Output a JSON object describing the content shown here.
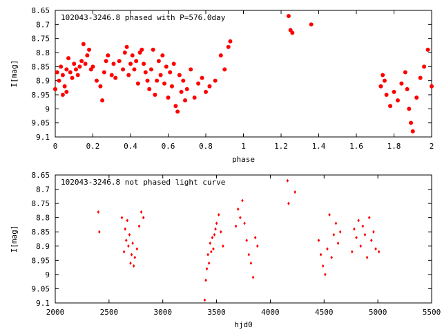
{
  "chart_data": [
    {
      "type": "scatter",
      "title": "102043-3246.8 phased with P=576.0day",
      "xlabel": "phase",
      "ylabel": "I[mag]",
      "xlim": [
        0,
        2
      ],
      "ylim": [
        9.1,
        8.65
      ],
      "y_inverted": true,
      "xticks": [
        "0",
        "0.2",
        "0.4",
        "0.6",
        "0.8",
        "1",
        "1.2",
        "1.4",
        "1.6",
        "1.8",
        "2"
      ],
      "yticks": [
        "8.65",
        "8.7",
        "8.75",
        "8.8",
        "8.85",
        "8.9",
        "8.95",
        "9",
        "9.05",
        "9.1"
      ],
      "grid": false,
      "marker": "filled-circle",
      "color": "#ff0000",
      "series": [
        {
          "x": [
            0.0,
            0.01,
            0.02,
            0.03,
            0.04,
            0.04,
            0.05,
            0.06,
            0.06,
            0.07,
            0.08,
            0.09,
            0.1,
            0.11,
            0.12,
            0.13,
            0.14,
            0.15,
            0.16,
            0.17,
            0.18,
            0.19,
            0.2,
            0.22,
            0.24,
            0.25,
            0.26,
            0.27,
            0.28,
            0.3,
            0.31,
            0.32,
            0.34,
            0.36,
            0.37,
            0.38,
            0.39,
            0.4,
            0.41,
            0.42,
            0.43,
            0.44,
            0.45,
            0.46,
            0.47,
            0.48,
            0.49,
            0.5,
            0.51,
            0.52,
            0.53,
            0.54,
            0.55,
            0.56,
            0.57,
            0.58,
            0.59,
            0.6,
            0.61,
            0.62,
            0.63,
            0.64,
            0.65,
            0.66,
            0.67,
            0.68,
            0.69,
            0.7,
            0.72,
            0.74,
            0.76,
            0.78,
            0.8,
            0.82,
            0.85,
            0.88,
            0.9,
            0.92,
            0.93,
            1.24,
            1.25,
            1.26,
            1.36,
            1.73,
            1.74,
            1.75,
            1.76,
            1.78,
            1.8,
            1.82,
            1.84,
            1.86,
            1.87,
            1.88,
            1.89,
            1.9,
            1.92,
            1.94,
            1.96,
            1.98,
            2.0
          ],
          "y": [
            8.93,
            8.87,
            8.9,
            8.85,
            8.95,
            8.88,
            8.92,
            8.86,
            8.94,
            8.82,
            8.87,
            8.89,
            8.84,
            8.86,
            8.88,
            8.85,
            8.83,
            8.77,
            8.84,
            8.81,
            8.79,
            8.86,
            8.85,
            8.9,
            8.92,
            8.97,
            8.87,
            8.83,
            8.81,
            8.88,
            8.84,
            8.89,
            8.83,
            8.86,
            8.8,
            8.78,
            8.88,
            8.84,
            8.81,
            8.86,
            8.83,
            8.91,
            8.8,
            8.79,
            8.84,
            8.87,
            8.9,
            8.93,
            8.86,
            8.79,
            8.95,
            8.9,
            8.83,
            8.88,
            8.81,
            8.91,
            8.85,
            8.96,
            8.87,
            8.92,
            8.84,
            8.99,
            9.01,
            8.88,
            8.94,
            8.9,
            8.97,
            8.93,
            8.86,
            8.96,
            8.91,
            8.89,
            8.94,
            8.92,
            8.9,
            8.81,
            8.86,
            8.78,
            8.76,
            8.67,
            8.72,
            8.73,
            8.7,
            8.92,
            8.88,
            8.9,
            8.95,
            8.99,
            8.94,
            8.97,
            8.91,
            8.87,
            8.93,
            9.0,
            9.05,
            9.08,
            8.96,
            8.89,
            8.85,
            8.79,
            8.92
          ]
        }
      ]
    },
    {
      "type": "scatter",
      "title": "102043-3246.8 not phased light curve",
      "xlabel": "hjd0",
      "ylabel": "I[mag]",
      "xlim": [
        2000,
        5500
      ],
      "ylim": [
        9.1,
        8.65
      ],
      "y_inverted": true,
      "xticks": [
        "2000",
        "2500",
        "3000",
        "3500",
        "4000",
        "4500",
        "5000",
        "5500"
      ],
      "yticks": [
        "8.65",
        "8.7",
        "8.75",
        "8.8",
        "8.85",
        "8.9",
        "8.95",
        "9",
        "9.05",
        "9.1"
      ],
      "grid": false,
      "marker": "small-diamond",
      "color": "#ff0000",
      "series": [
        {
          "x": [
            2400,
            2410,
            2620,
            2640,
            2650,
            2660,
            2670,
            2680,
            2690,
            2700,
            2710,
            2720,
            2730,
            2740,
            2760,
            2780,
            2800,
            2820,
            3390,
            3400,
            3410,
            3420,
            3430,
            3440,
            3450,
            3460,
            3470,
            3480,
            3490,
            3500,
            3520,
            3540,
            3560,
            3680,
            3700,
            3720,
            3740,
            3760,
            3780,
            3800,
            3820,
            3840,
            3860,
            3880,
            4160,
            4170,
            4230,
            4450,
            4470,
            4490,
            4510,
            4530,
            4550,
            4570,
            4590,
            4610,
            4630,
            4650,
            4760,
            4780,
            4800,
            4820,
            4840,
            4860,
            4880,
            4900,
            4920,
            4940,
            4960,
            4980,
            5010
          ],
          "y": [
            8.78,
            8.85,
            8.8,
            8.92,
            8.84,
            8.88,
            8.81,
            8.9,
            8.86,
            8.96,
            8.93,
            8.89,
            8.97,
            8.94,
            8.91,
            8.83,
            8.78,
            8.8,
            9.09,
            9.02,
            8.98,
            8.93,
            8.96,
            8.89,
            8.92,
            8.87,
            8.91,
            8.86,
            8.84,
            8.82,
            8.79,
            8.85,
            8.9,
            8.83,
            8.77,
            8.8,
            8.74,
            8.82,
            8.88,
            8.93,
            8.96,
            9.01,
            8.87,
            8.9,
            8.67,
            8.75,
            8.71,
            8.88,
            8.93,
            8.97,
            9.0,
            8.91,
            8.79,
            8.94,
            8.86,
            8.82,
            8.89,
            8.85,
            8.92,
            8.84,
            8.87,
            8.81,
            8.9,
            8.83,
            8.86,
            8.94,
            8.8,
            8.88,
            8.85,
            8.91,
            8.92
          ]
        }
      ]
    }
  ]
}
